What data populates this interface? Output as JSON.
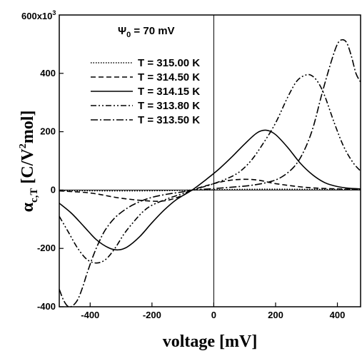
{
  "chart_data": {
    "type": "line",
    "title": "",
    "annotation": {
      "symbol": "Ψ",
      "subscript": "0",
      "text": " = 70 mV"
    },
    "xlabel": "voltage [mV]",
    "ylabel": {
      "symbol": "α",
      "subscript": "c,T",
      "units_pre": " [C/V",
      "units_sup": "2",
      "units_post": "mol]"
    },
    "xlim": [
      -500,
      475
    ],
    "ylim": [
      -400000,
      600000
    ],
    "y_multiplier_label": "600x10",
    "y_multiplier_exp": "3",
    "x_ticks": [
      {
        "v": -400,
        "label": "-400"
      },
      {
        "v": -200,
        "label": "-200"
      },
      {
        "v": 0,
        "label": "0"
      },
      {
        "v": 200,
        "label": "200"
      },
      {
        "v": 400,
        "label": "400"
      }
    ],
    "y_ticks": [
      {
        "v": -400000,
        "label": "-400"
      },
      {
        "v": -200000,
        "label": "-200"
      },
      {
        "v": 0,
        "label": "0"
      },
      {
        "v": 200000,
        "label": "200"
      },
      {
        "v": 400000,
        "label": "400"
      }
    ],
    "grid": false,
    "legend_position": "upper-left",
    "series": [
      {
        "name": "T = 315.00 K",
        "dash": "1.5,2",
        "x": [
          -500,
          -400,
          -300,
          -200,
          -100,
          -70,
          0,
          100,
          200,
          300,
          400,
          475
        ],
        "y": [
          -2000,
          -2500,
          -3000,
          -2500,
          -1000,
          0,
          1000,
          2500,
          3000,
          2500,
          2000,
          1500
        ]
      },
      {
        "name": "T = 314.50 K",
        "dash": "7,4",
        "x": [
          -500,
          -400,
          -300,
          -200,
          -150,
          -100,
          -70,
          0,
          50,
          100,
          150,
          200,
          300,
          400,
          475
        ],
        "y": [
          -3000,
          -10000,
          -28000,
          -38000,
          -35000,
          -18000,
          0,
          22000,
          33000,
          37000,
          33000,
          22000,
          9000,
          4000,
          3000
        ]
      },
      {
        "name": "T = 314.15 K",
        "dash": "",
        "x": [
          -500,
          -460,
          -420,
          -380,
          -340,
          -310,
          -280,
          -240,
          -200,
          -160,
          -120,
          -70,
          -20,
          20,
          60,
          100,
          140,
          170,
          200,
          240,
          280,
          320,
          360,
          400,
          440,
          475
        ],
        "y": [
          -45000,
          -80000,
          -125000,
          -170000,
          -198000,
          -205000,
          -195000,
          -160000,
          -112000,
          -68000,
          -32000,
          0,
          40000,
          75000,
          115000,
          158000,
          196000,
          205000,
          190000,
          145000,
          92000,
          52000,
          25000,
          12000,
          6000,
          4000
        ]
      },
      {
        "name": "T = 313.80 K",
        "dash": "8,3,2,3,2,3",
        "x": [
          -500,
          -470,
          -440,
          -410,
          -380,
          -350,
          -320,
          -290,
          -260,
          -230,
          -200,
          -150,
          -100,
          -70,
          -20,
          0,
          40,
          80,
          120,
          160,
          200,
          240,
          270,
          300,
          320,
          340,
          360,
          390,
          420,
          450,
          475
        ],
        "y": [
          -90000,
          -145000,
          -200000,
          -238000,
          -250000,
          -238000,
          -200000,
          -150000,
          -110000,
          -75000,
          -52000,
          -30000,
          -12000,
          0,
          15000,
          22000,
          38000,
          60000,
          100000,
          160000,
          230000,
          320000,
          375000,
          395000,
          390000,
          365000,
          320000,
          230000,
          150000,
          95000,
          65000
        ]
      },
      {
        "name": "T = 313.50 K",
        "dash": "10,3,2,3",
        "x": [
          -500,
          -485,
          -470,
          -455,
          -440,
          -425,
          -410,
          -390,
          -370,
          -350,
          -320,
          -280,
          -240,
          -200,
          -150,
          -100,
          -70,
          0,
          60,
          120,
          180,
          220,
          260,
          290,
          320,
          350,
          380,
          400,
          415,
          430,
          445,
          460,
          475
        ],
        "y": [
          -340000,
          -380000,
          -400000,
          -395000,
          -375000,
          -335000,
          -285000,
          -225000,
          -175000,
          -135000,
          -95000,
          -62000,
          -40000,
          -25000,
          -14000,
          -6000,
          0,
          5000,
          10000,
          16000,
          28000,
          45000,
          80000,
          130000,
          210000,
          330000,
          440000,
          500000,
          515000,
          505000,
          460000,
          400000,
          370000
        ]
      }
    ]
  }
}
